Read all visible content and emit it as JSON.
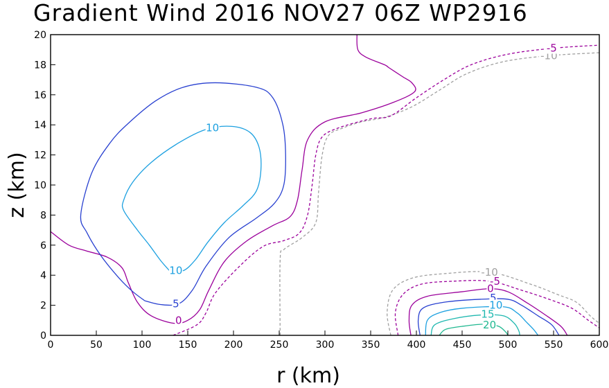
{
  "chart_data": {
    "type": "contour",
    "title": "Gradient Wind 2016 NOV27 06Z  WP2916",
    "xlabel": "r (km)",
    "ylabel": "z (km)",
    "xlim": [
      0,
      600
    ],
    "ylim": [
      0,
      20
    ],
    "xticks": [
      0,
      50,
      100,
      150,
      200,
      250,
      300,
      350,
      400,
      450,
      500,
      550,
      600
    ],
    "yticks": [
      0,
      2,
      4,
      6,
      8,
      10,
      12,
      14,
      16,
      18,
      20
    ],
    "contours": [
      {
        "level": "-10",
        "color": "#a0a0a0",
        "dashed": true,
        "segments": [
          [
            [
              251,
              0
            ],
            [
              251,
              5
            ],
            [
              255,
              5.7
            ],
            [
              275,
              6.5
            ],
            [
              290,
              7.5
            ],
            [
              293,
              9.5
            ],
            [
              297,
              12
            ],
            [
              304,
              13.3
            ],
            [
              320,
              13.8
            ],
            [
              340,
              14.2
            ],
            [
              365,
              14.5
            ],
            [
              395,
              15.2
            ],
            [
              425,
              16.3
            ],
            [
              455,
              17.4
            ],
            [
              495,
              18.2
            ],
            [
              545,
              18.6
            ],
            [
              600,
              18.8
            ]
          ],
          [
            [
              372,
              0
            ],
            [
              368,
              1.5
            ],
            [
              374,
              3
            ],
            [
              395,
              3.8
            ],
            [
              430,
              4.1
            ],
            [
              480,
              4.2
            ],
            [
              525,
              3.4
            ],
            [
              555,
              2.7
            ],
            [
              575,
              2.2
            ],
            [
              590,
              1.3
            ],
            [
              600,
              0.8
            ]
          ]
        ],
        "labels": [
          {
            "text": "-10",
            "x": 545,
            "y": 18.6
          },
          {
            "text": "-10",
            "x": 480,
            "y": 4.2
          }
        ]
      },
      {
        "level": "-5",
        "color": "#9b009b",
        "dashed": true,
        "segments": [
          [
            [
              134,
              0
            ],
            [
              160,
              0.7
            ],
            [
              170,
              1.5
            ],
            [
              180,
              2.8
            ],
            [
              205,
              4.5
            ],
            [
              232,
              5.9
            ],
            [
              255,
              6.3
            ],
            [
              272,
              6.8
            ],
            [
              281,
              8
            ],
            [
              286,
              10
            ],
            [
              290,
              12
            ],
            [
              297,
              13.2
            ],
            [
              315,
              13.8
            ],
            [
              350,
              14.4
            ],
            [
              372,
              14.6
            ],
            [
              400,
              15.8
            ],
            [
              430,
              17
            ],
            [
              460,
              18
            ],
            [
              500,
              18.7
            ],
            [
              550,
              19.1
            ],
            [
              600,
              19.3
            ]
          ],
          [
            [
              380,
              0
            ],
            [
              377,
              1.5
            ],
            [
              385,
              2.7
            ],
            [
              405,
              3.4
            ],
            [
              440,
              3.6
            ],
            [
              480,
              3.6
            ],
            [
              515,
              3
            ],
            [
              545,
              2.4
            ],
            [
              570,
              1.8
            ],
            [
              588,
              1
            ],
            [
              600,
              0.5
            ]
          ]
        ],
        "labels": [
          {
            "text": "-5",
            "x": 548,
            "y": 19.1
          },
          {
            "text": "-5",
            "x": 486,
            "y": 3.6
          }
        ]
      },
      {
        "level": "0",
        "color": "#9b009b",
        "dashed": false,
        "segments": [
          [
            [
              0,
              6.9
            ],
            [
              20,
              6
            ],
            [
              40,
              5.6
            ],
            [
              62,
              5.2
            ],
            [
              78,
              4.5
            ],
            [
              85,
              3.5
            ],
            [
              95,
              2.2
            ],
            [
              110,
              1.3
            ],
            [
              135,
              0.8
            ],
            [
              150,
              1
            ],
            [
              163,
              1.7
            ],
            [
              173,
              3
            ],
            [
              190,
              4.9
            ],
            [
              215,
              6.3
            ],
            [
              243,
              7.3
            ],
            [
              262,
              7.9
            ],
            [
              270,
              9
            ],
            [
              275,
              11
            ],
            [
              281,
              13
            ],
            [
              300,
              14.2
            ],
            [
              340,
              14.8
            ],
            [
              375,
              15.5
            ],
            [
              398,
              16.2
            ],
            [
              395,
              16.8
            ],
            [
              385,
              17.2
            ],
            [
              370,
              17.8
            ],
            [
              365,
              18
            ],
            [
              345,
              18.5
            ],
            [
              336,
              19
            ],
            [
              335,
              20
            ]
          ],
          [
            [
              394,
              0
            ],
            [
              392,
              1
            ],
            [
              395,
              2
            ],
            [
              412,
              2.6
            ],
            [
              450,
              2.9
            ],
            [
              480,
              3.1
            ],
            [
              500,
              2.9
            ],
            [
              520,
              2.2
            ],
            [
              540,
              1.4
            ],
            [
              558,
              0.6
            ],
            [
              565,
              0
            ]
          ]
        ],
        "labels": [
          {
            "text": "0",
            "x": 140,
            "y": 1
          },
          {
            "text": "0",
            "x": 481,
            "y": 3.1
          }
        ]
      },
      {
        "level": "5",
        "color": "#2840d0",
        "dashed": false,
        "segments": [
          [
            [
              103,
              2.3
            ],
            [
              120,
              2.05
            ],
            [
              140,
              2.1
            ],
            [
              155,
              3
            ],
            [
              170,
              4.6
            ],
            [
              195,
              6.5
            ],
            [
              225,
              7.8
            ],
            [
              245,
              8.8
            ],
            [
              255,
              10
            ],
            [
              257,
              12
            ],
            [
              254,
              14
            ],
            [
              243,
              15.8
            ],
            [
              225,
              16.5
            ],
            [
              180,
              16.8
            ],
            [
              145,
              16.5
            ],
            [
              115,
              15.6
            ],
            [
              85,
              14.1
            ],
            [
              65,
              12.8
            ],
            [
              45,
              10.8
            ],
            [
              33,
              8
            ],
            [
              40,
              6.8
            ],
            [
              55,
              5.3
            ],
            [
              75,
              3.8
            ],
            [
              90,
              2.9
            ],
            [
              103,
              2.3
            ]
          ],
          [
            [
              404,
              0
            ],
            [
              402,
              1
            ],
            [
              407,
              1.8
            ],
            [
              430,
              2.2
            ],
            [
              470,
              2.4
            ],
            [
              500,
              2.4
            ],
            [
              515,
              2
            ],
            [
              533,
              1.3
            ],
            [
              548,
              0.7
            ],
            [
              556,
              0
            ]
          ]
        ],
        "labels": [
          {
            "text": "5",
            "x": 137,
            "y": 2.1
          },
          {
            "text": "5",
            "x": 484,
            "y": 2.5
          }
        ]
      },
      {
        "level": "10",
        "color": "#1ca0e0",
        "dashed": false,
        "segments": [
          [
            [
              130,
              4.3
            ],
            [
              145,
              4.3
            ],
            [
              158,
              5
            ],
            [
              172,
              6.2
            ],
            [
              190,
              7.5
            ],
            [
              210,
              8.6
            ],
            [
              225,
              9.6
            ],
            [
              230,
              11
            ],
            [
              228,
              12.5
            ],
            [
              218,
              13.5
            ],
            [
              198,
              13.9
            ],
            [
              170,
              13.7
            ],
            [
              140,
              12.8
            ],
            [
              110,
              11.5
            ],
            [
              90,
              10.2
            ],
            [
              80,
              9
            ],
            [
              80,
              8.3
            ],
            [
              95,
              7
            ],
            [
              108,
              6
            ],
            [
              120,
              5
            ],
            [
              130,
              4.3
            ]
          ],
          [
            [
              410,
              0
            ],
            [
              412,
              1
            ],
            [
              425,
              1.5
            ],
            [
              450,
              1.8
            ],
            [
              495,
              1.9
            ],
            [
              510,
              1.5
            ],
            [
              520,
              0.9
            ],
            [
              528,
              0.4
            ],
            [
              533,
              0
            ]
          ]
        ],
        "labels": [
          {
            "text": "10",
            "x": 137,
            "y": 4.3
          },
          {
            "text": "10",
            "x": 177,
            "y": 13.8
          },
          {
            "text": "10",
            "x": 487,
            "y": 2
          }
        ]
      },
      {
        "level": "15",
        "color": "#20b8b0",
        "dashed": false,
        "segments": [
          [
            [
              416,
              0
            ],
            [
              420,
              0.7
            ],
            [
              440,
              1.1
            ],
            [
              470,
              1.35
            ],
            [
              495,
              1.3
            ],
            [
              507,
              0.8
            ],
            [
              512,
              0.3
            ],
            [
              513,
              0
            ]
          ]
        ],
        "labels": [
          {
            "text": "15",
            "x": 478,
            "y": 1.4
          }
        ]
      },
      {
        "level": "20",
        "color": "#20b890",
        "dashed": false,
        "segments": [
          [
            [
              425,
              0
            ],
            [
              432,
              0.4
            ],
            [
              450,
              0.6
            ],
            [
              475,
              0.75
            ],
            [
              490,
              0.6
            ],
            [
              498,
              0.2
            ],
            [
              500,
              0
            ]
          ]
        ],
        "labels": [
          {
            "text": "20",
            "x": 480,
            "y": 0.7
          }
        ]
      }
    ]
  }
}
